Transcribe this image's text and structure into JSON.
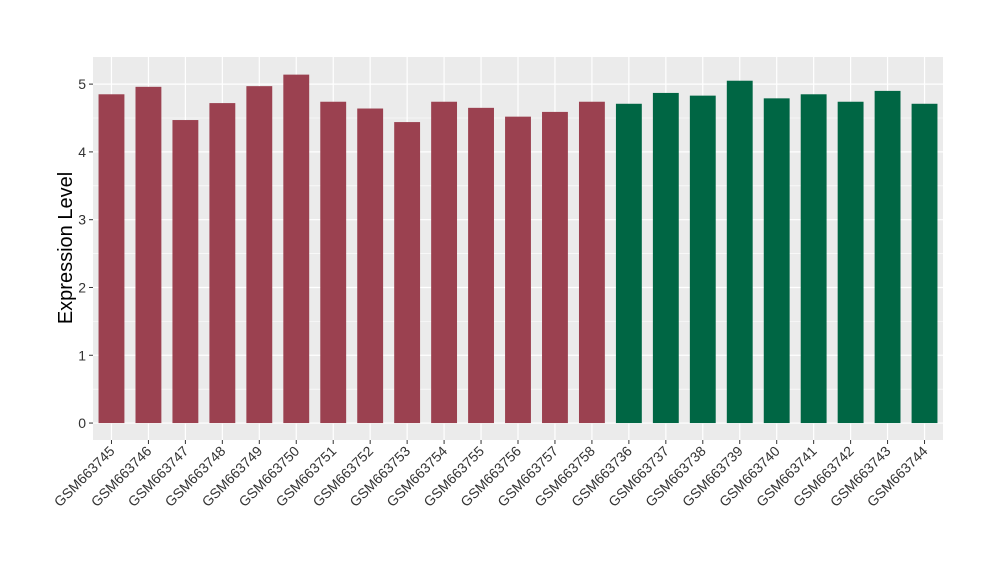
{
  "chart_data": {
    "type": "bar",
    "title": "",
    "xlabel": "",
    "ylabel": "Expression Level",
    "ylim": [
      -0.25,
      5.4
    ],
    "yticks": [
      "0",
      "1",
      "2",
      "3",
      "4",
      "5"
    ],
    "grid": true,
    "legend": "none",
    "categories": [
      "GSM663745",
      "GSM663746",
      "GSM663747",
      "GSM663748",
      "GSM663749",
      "GSM663750",
      "GSM663751",
      "GSM663752",
      "GSM663753",
      "GSM663754",
      "GSM663755",
      "GSM663756",
      "GSM663757",
      "GSM663758",
      "GSM663736",
      "GSM663737",
      "GSM663738",
      "GSM663739",
      "GSM663740",
      "GSM663741",
      "GSM663742",
      "GSM663743",
      "GSM663744"
    ],
    "values": [
      4.85,
      4.96,
      4.47,
      4.72,
      4.97,
      5.14,
      4.74,
      4.64,
      4.44,
      4.74,
      4.65,
      4.52,
      4.59,
      4.74,
      4.71,
      4.87,
      4.83,
      5.05,
      4.79,
      4.85,
      4.74,
      4.9,
      4.71
    ],
    "group_sizes": [
      14,
      9
    ],
    "colors": [
      "#9B4150",
      "#006644"
    ],
    "panel_color": "#EBEBEB",
    "grid_color": "#FFFFFF"
  }
}
